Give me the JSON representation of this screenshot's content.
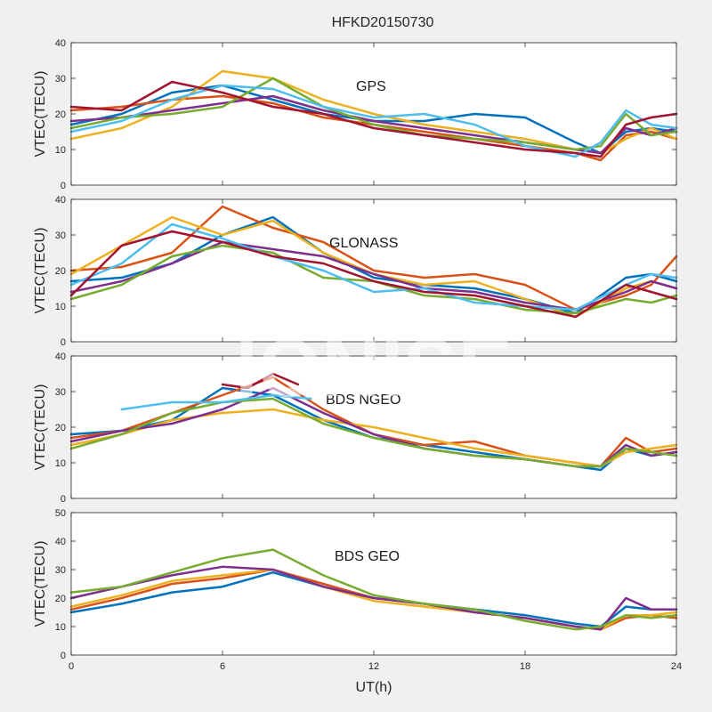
{
  "figure": {
    "title": "HFKD20150730",
    "xlabel": "UT(h)",
    "watermark": "IONISE"
  },
  "chart_data": [
    {
      "type": "line",
      "label": "GPS",
      "ylabel": "VTEC(TECU)",
      "xlim": [
        0,
        24
      ],
      "ylim": [
        0,
        40
      ],
      "xticks": [
        0,
        6,
        12,
        18,
        24
      ],
      "yticks": [
        0,
        10,
        20,
        30,
        40
      ],
      "series": [
        {
          "color": "#0072bd",
          "x": [
            0,
            2,
            4,
            6,
            8,
            10,
            12,
            14,
            16,
            18,
            20,
            21,
            22,
            23,
            24
          ],
          "y": [
            17,
            20,
            26,
            28,
            24,
            20,
            18,
            18,
            20,
            19,
            12,
            9,
            15,
            16,
            15
          ]
        },
        {
          "color": "#d95319",
          "x": [
            0,
            2,
            4,
            6,
            8,
            10,
            12,
            14,
            16,
            18,
            20,
            21,
            22,
            23,
            24
          ],
          "y": [
            21,
            22,
            24,
            25,
            23,
            19,
            17,
            15,
            13,
            11,
            9,
            7,
            14,
            15,
            13
          ]
        },
        {
          "color": "#edb120",
          "x": [
            0,
            2,
            4,
            6,
            8,
            10,
            12,
            14,
            16,
            18,
            20,
            21,
            22,
            23,
            24
          ],
          "y": [
            13,
            16,
            22,
            32,
            30,
            24,
            20,
            17,
            15,
            13,
            10,
            9,
            13,
            16,
            13
          ]
        },
        {
          "color": "#7e2f8e",
          "x": [
            0,
            2,
            4,
            6,
            8,
            10,
            12,
            14,
            16,
            18,
            20,
            21,
            22,
            23,
            24
          ],
          "y": [
            18,
            19,
            21,
            23,
            25,
            21,
            18,
            16,
            14,
            12,
            10,
            9,
            16,
            14,
            16
          ]
        },
        {
          "color": "#77ac30",
          "x": [
            0,
            2,
            4,
            6,
            8,
            10,
            12,
            14,
            16,
            18,
            20,
            21,
            22,
            23,
            24
          ],
          "y": [
            16,
            19,
            20,
            22,
            30,
            22,
            17,
            14,
            13,
            12,
            10,
            11,
            20,
            14,
            15
          ]
        },
        {
          "color": "#4dbeee",
          "x": [
            0,
            2,
            4,
            6,
            8,
            10,
            12,
            14,
            16,
            18,
            20,
            21,
            22,
            23,
            24
          ],
          "y": [
            15,
            18,
            24,
            28,
            27,
            22,
            19,
            20,
            17,
            11,
            8,
            12,
            21,
            17,
            16
          ]
        },
        {
          "color": "#a2142f",
          "x": [
            0,
            2,
            4,
            6,
            8,
            10,
            12,
            14,
            16,
            18,
            20,
            21,
            22,
            23,
            24
          ],
          "y": [
            22,
            21,
            29,
            26,
            22,
            20,
            16,
            14,
            12,
            10,
            9,
            8,
            17,
            19,
            20
          ]
        }
      ]
    },
    {
      "type": "line",
      "label": "GLONASS",
      "ylabel": "VTEC(TECU)",
      "xlim": [
        0,
        24
      ],
      "ylim": [
        0,
        40
      ],
      "xticks": [
        0,
        6,
        12,
        18,
        24
      ],
      "yticks": [
        0,
        10,
        20,
        30,
        40
      ],
      "series": [
        {
          "color": "#0072bd",
          "x": [
            0,
            2,
            4,
            6,
            8,
            10,
            12,
            14,
            16,
            18,
            20,
            22,
            23,
            24
          ],
          "y": [
            17,
            18,
            22,
            30,
            35,
            25,
            18,
            16,
            15,
            12,
            8,
            18,
            19,
            17
          ]
        },
        {
          "color": "#d95319",
          "x": [
            0,
            2,
            4,
            6,
            8,
            10,
            12,
            14,
            16,
            18,
            20,
            22,
            23,
            24
          ],
          "y": [
            20,
            21,
            25,
            38,
            32,
            28,
            20,
            18,
            19,
            16,
            9,
            13,
            16,
            24
          ]
        },
        {
          "color": "#edb120",
          "x": [
            0,
            2,
            4,
            6,
            8,
            10,
            12,
            14,
            16,
            18,
            20,
            22,
            23,
            24
          ],
          "y": [
            19,
            27,
            35,
            30,
            34,
            25,
            19,
            16,
            17,
            12,
            7,
            15,
            17,
            15
          ]
        },
        {
          "color": "#7e2f8e",
          "x": [
            0,
            2,
            4,
            6,
            8,
            10,
            12,
            14,
            16,
            18,
            20,
            22,
            23,
            24
          ],
          "y": [
            14,
            17,
            22,
            28,
            26,
            24,
            19,
            15,
            14,
            11,
            9,
            14,
            17,
            15
          ]
        },
        {
          "color": "#77ac30",
          "x": [
            0,
            2,
            4,
            6,
            8,
            10,
            12,
            14,
            16,
            18,
            20,
            22,
            23,
            24
          ],
          "y": [
            12,
            16,
            24,
            27,
            25,
            18,
            17,
            13,
            12,
            9,
            8,
            12,
            11,
            13
          ]
        },
        {
          "color": "#4dbeee",
          "x": [
            0,
            2,
            4,
            6,
            8,
            10,
            12,
            14,
            16,
            18,
            20,
            22,
            23,
            24
          ],
          "y": [
            16,
            22,
            33,
            29,
            24,
            20,
            14,
            15,
            11,
            10,
            9,
            16,
            19,
            18
          ]
        },
        {
          "color": "#a2142f",
          "x": [
            0,
            2,
            4,
            6,
            8,
            10,
            12,
            14,
            16,
            18,
            20,
            22,
            23,
            24
          ],
          "y": [
            13,
            27,
            31,
            28,
            24,
            22,
            17,
            14,
            13,
            10,
            7,
            16,
            14,
            12
          ]
        }
      ]
    },
    {
      "type": "line",
      "label": "BDS NGEO",
      "ylabel": "VTEC(TECU)",
      "xlim": [
        0,
        24
      ],
      "ylim": [
        0,
        40
      ],
      "xticks": [
        0,
        6,
        12,
        18,
        24
      ],
      "yticks": [
        0,
        10,
        20,
        30,
        40
      ],
      "series": [
        {
          "color": "#0072bd",
          "x": [
            0,
            2,
            4,
            6,
            8,
            10,
            12,
            14,
            16,
            18,
            20,
            21,
            22,
            23,
            24
          ],
          "y": [
            18,
            19,
            22,
            31,
            29,
            22,
            17,
            15,
            13,
            11,
            9,
            8,
            14,
            12,
            13
          ]
        },
        {
          "color": "#d95319",
          "x": [
            0,
            2,
            4,
            6,
            8,
            10,
            12,
            14,
            16,
            18,
            20,
            21,
            22,
            23,
            24
          ],
          "y": [
            17,
            19,
            24,
            29,
            34,
            25,
            18,
            15,
            16,
            12,
            10,
            9,
            17,
            13,
            14
          ]
        },
        {
          "color": "#edb120",
          "x": [
            0,
            2,
            4,
            6,
            8,
            10,
            12,
            14,
            16,
            18,
            20,
            21,
            22,
            23,
            24
          ],
          "y": [
            15,
            18,
            22,
            24,
            25,
            22,
            20,
            17,
            14,
            12,
            10,
            9,
            13,
            14,
            15
          ]
        },
        {
          "color": "#7e2f8e",
          "x": [
            0,
            2,
            4,
            6,
            8,
            10,
            12,
            14,
            16,
            18,
            20,
            21,
            22,
            23,
            24
          ],
          "y": [
            16,
            19,
            21,
            25,
            31,
            24,
            18,
            14,
            12,
            11,
            9,
            9,
            15,
            12,
            13
          ]
        },
        {
          "color": "#77ac30",
          "x": [
            0,
            2,
            4,
            6,
            8,
            10,
            12,
            14,
            16,
            18,
            20,
            21,
            22,
            23,
            24
          ],
          "y": [
            14,
            18,
            24,
            27,
            28,
            21,
            17,
            14,
            12,
            11,
            9,
            9,
            14,
            13,
            12
          ]
        },
        {
          "color": "#4dbeee",
          "x": [
            2,
            4,
            6,
            8,
            9.5
          ],
          "y": [
            25,
            27,
            27,
            29,
            28
          ]
        },
        {
          "color": "#a2142f",
          "x": [
            6,
            7,
            8,
            9
          ],
          "y": [
            32,
            31,
            35,
            32
          ]
        }
      ]
    },
    {
      "type": "line",
      "label": "BDS GEO",
      "ylabel": "VTEC(TECU)",
      "xlim": [
        0,
        24
      ],
      "ylim": [
        0,
        50
      ],
      "xticks": [
        0,
        6,
        12,
        18,
        24
      ],
      "yticks": [
        0,
        10,
        20,
        30,
        40,
        50
      ],
      "series": [
        {
          "color": "#0072bd",
          "x": [
            0,
            2,
            4,
            6,
            8,
            10,
            12,
            14,
            16,
            18,
            20,
            21,
            22,
            23,
            24
          ],
          "y": [
            15,
            18,
            22,
            24,
            29,
            24,
            20,
            18,
            16,
            14,
            11,
            10,
            17,
            16,
            16
          ]
        },
        {
          "color": "#d95319",
          "x": [
            0,
            2,
            4,
            6,
            8,
            10,
            12,
            14,
            16,
            18,
            20,
            21,
            22,
            23,
            24
          ],
          "y": [
            16,
            20,
            25,
            27,
            30,
            25,
            20,
            18,
            15,
            13,
            10,
            9,
            13,
            14,
            13
          ]
        },
        {
          "color": "#edb120",
          "x": [
            0,
            2,
            4,
            6,
            8,
            10,
            12,
            14,
            16,
            18,
            20,
            21,
            22,
            23,
            24
          ],
          "y": [
            17,
            21,
            26,
            28,
            30,
            24,
            19,
            17,
            15,
            13,
            10,
            9,
            14,
            14,
            15
          ]
        },
        {
          "color": "#7e2f8e",
          "x": [
            0,
            2,
            4,
            6,
            8,
            10,
            12,
            14,
            16,
            18,
            20,
            21,
            22,
            23,
            24
          ],
          "y": [
            20,
            24,
            28,
            31,
            30,
            24,
            20,
            18,
            15,
            13,
            10,
            9,
            20,
            16,
            16
          ]
        },
        {
          "color": "#77ac30",
          "x": [
            0,
            2,
            4,
            6,
            8,
            10,
            12,
            14,
            16,
            18,
            20,
            21,
            22,
            23,
            24
          ],
          "y": [
            22,
            24,
            29,
            34,
            37,
            28,
            21,
            18,
            16,
            12,
            9,
            10,
            14,
            13,
            14
          ]
        }
      ]
    }
  ]
}
